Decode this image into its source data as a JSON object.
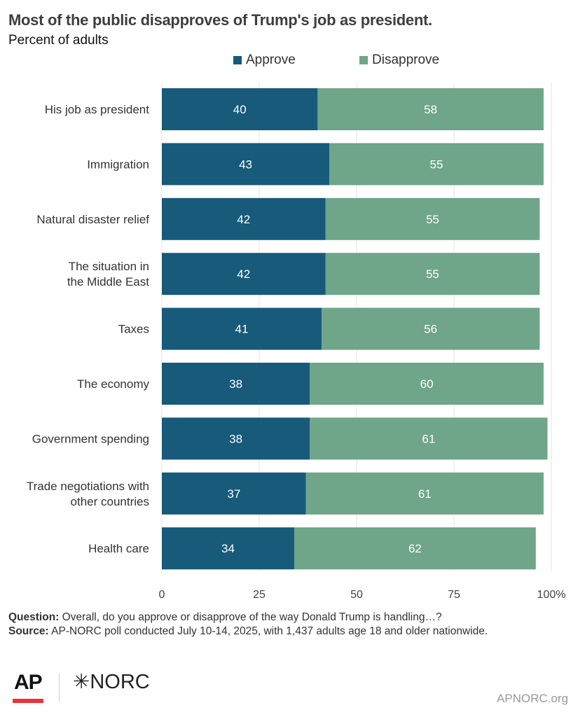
{
  "chart_data": {
    "type": "bar",
    "orientation": "horizontal",
    "stacked": true,
    "title": "Most of the public disapproves of Trump's job as president.",
    "subtitle": "Percent of adults",
    "categories": [
      [
        "His job as president"
      ],
      [
        "Immigration"
      ],
      [
        "Natural disaster relief"
      ],
      [
        "The situation in",
        "the Middle East"
      ],
      [
        "Taxes"
      ],
      [
        "The economy"
      ],
      [
        "Government spending"
      ],
      [
        "Trade negotiations with",
        "other countries"
      ],
      [
        "Health care"
      ]
    ],
    "series": [
      {
        "name": "Approve",
        "color": "#175a7a",
        "values": [
          40,
          43,
          42,
          42,
          41,
          38,
          38,
          37,
          34
        ]
      },
      {
        "name": "Disapprove",
        "color": "#6fa589",
        "values": [
          58,
          55,
          55,
          55,
          56,
          60,
          61,
          61,
          62
        ]
      }
    ],
    "xlim": [
      0,
      100
    ],
    "xticks": [
      "0",
      "25",
      "50",
      "75",
      "100%"
    ],
    "xtick_values": [
      0,
      25,
      50,
      75,
      100
    ],
    "legend": "top",
    "grid": true
  },
  "notes": {
    "question_label": "Question:",
    "question": " Overall, do you approve or disapprove of the way Donald Trump is handling…?",
    "source_label": "Source:",
    "source": " AP-NORC poll conducted July 10-14, 2025, with 1,437 adults age 18 and older nationwide."
  },
  "footer": {
    "ap_logo": "AP",
    "norc_logo": "NORC",
    "site": "APNORC.org"
  }
}
